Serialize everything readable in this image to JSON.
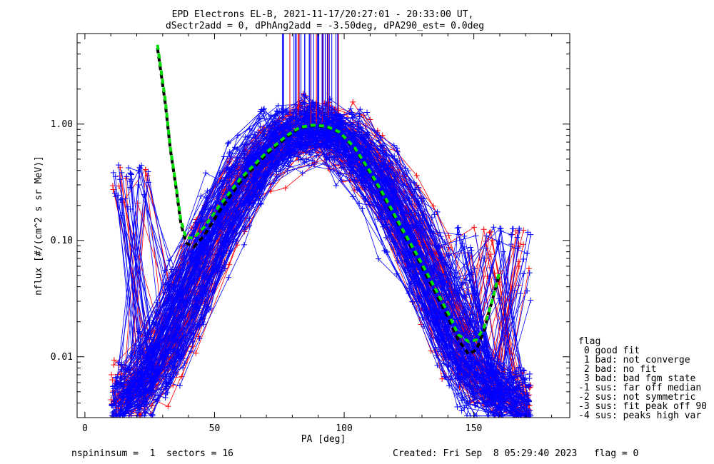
{
  "chart_data": {
    "type": "line",
    "title_line1": "EPD Electrons EL-B, 2021-11-17/20:27:01 - 20:33:00 UT,",
    "title_line2": "dSectr2add = 0, dPhAng2add = -3.50deg, dPA290_est=   0.0deg",
    "xlabel": "PA [deg]",
    "ylabel": "nflux [#/(cm^2 s sr MeV)]",
    "xlim": [
      -3,
      187
    ],
    "ylim": [
      0.003,
      6.0
    ],
    "yscale": "log",
    "x_ticks": [
      0,
      50,
      100,
      150
    ],
    "x_tick_labels": [
      "0",
      "50",
      "100",
      "150"
    ],
    "y_ticks": [
      0.01,
      0.1,
      1.0
    ],
    "y_tick_labels": [
      "0.01",
      "0.10",
      "1.00"
    ],
    "series": [
      {
        "name": "median model (black dashed)",
        "color": "#000000",
        "x": [
          28,
          31,
          33,
          35,
          37,
          39,
          42,
          46,
          52,
          60,
          70,
          78,
          83,
          88,
          93,
          98,
          104,
          110,
          116,
          122,
          128,
          134,
          140,
          144,
          148,
          151,
          154,
          157,
          160
        ],
        "y": [
          4.5,
          1.5,
          0.6,
          0.3,
          0.14,
          0.095,
          0.088,
          0.11,
          0.18,
          0.32,
          0.55,
          0.78,
          0.93,
          0.97,
          0.95,
          0.85,
          0.62,
          0.38,
          0.22,
          0.125,
          0.072,
          0.04,
          0.022,
          0.014,
          0.0105,
          0.0115,
          0.017,
          0.03,
          0.052
        ]
      },
      {
        "name": "fit (green dashed)",
        "color": "#00dd00",
        "x": [
          28,
          31,
          33,
          35,
          37,
          39,
          42,
          46,
          52,
          60,
          70,
          78,
          83,
          88,
          93,
          98,
          104,
          110,
          116,
          122,
          128,
          134,
          140,
          144,
          148,
          151,
          154,
          157,
          160
        ],
        "y": [
          4.8,
          1.6,
          0.62,
          0.31,
          0.15,
          0.105,
          0.105,
          0.13,
          0.2,
          0.34,
          0.57,
          0.8,
          0.94,
          0.98,
          0.96,
          0.86,
          0.63,
          0.39,
          0.23,
          0.13,
          0.076,
          0.043,
          0.024,
          0.0155,
          0.0135,
          0.014,
          0.018,
          0.03,
          0.055
        ]
      }
    ],
    "scatter_series": [
      {
        "name": "sector data (blue)",
        "color": "#0000ff"
      },
      {
        "name": "sector data (red)",
        "color": "#ff0000"
      }
    ]
  },
  "legend": {
    "title": "flag",
    "items": [
      " 0 good fit",
      " 1 bad: not converge",
      " 2 bad: no fit",
      " 3 bad: bad fgm state",
      "-1 sus: far off median",
      "-2 sus: not symmetric",
      "-3 sus: fit peak off 90",
      "-4 sus: peaks high var"
    ]
  },
  "footer": {
    "left": "nspininsum =  1  sectors = 16",
    "right": "Created: Fri Sep  8 05:29:40 2023   flag = 0"
  },
  "colors": {
    "blue": "#0000ff",
    "red": "#ff0000",
    "green": "#00dd00",
    "black": "#000000"
  }
}
